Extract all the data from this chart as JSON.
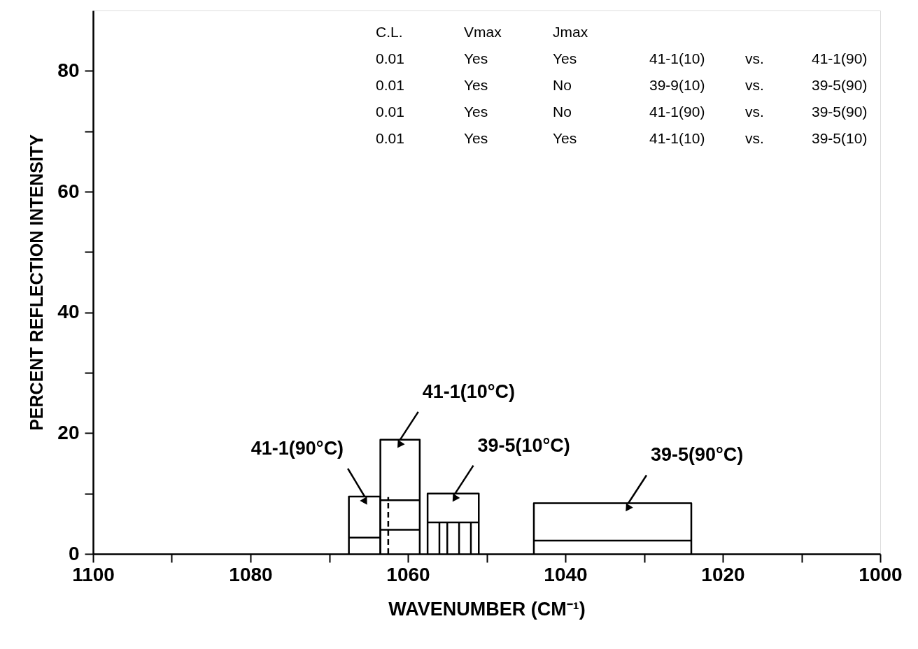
{
  "chart_data": {
    "type": "line",
    "xlabel": "WAVENUMBER (CM⁻¹)",
    "ylabel": "PERCENT REFLECTION INTENSITY",
    "xlim": [
      1100,
      1000
    ],
    "xticks": [
      1100,
      {
        "value": 1090,
        "label": null
      },
      1080,
      {
        "value": 1070,
        "label": null
      },
      1060,
      {
        "value": 1050,
        "label": null
      },
      1040,
      {
        "value": 1030,
        "label": null
      },
      1020,
      {
        "value": 1010,
        "label": null
      },
      1000
    ],
    "ylim": [
      0,
      90
    ],
    "yticks": [
      0,
      {
        "value": 10,
        "label": null
      },
      20,
      {
        "value": 30,
        "label": null
      },
      40,
      {
        "value": 50,
        "label": null
      },
      60,
      {
        "value": 70,
        "label": null
      },
      80
    ],
    "grid": false,
    "marker": "none",
    "series": [
      {
        "color": "#000000",
        "x": [
          1067.5,
          1067.5,
          1063.5,
          1063.5
        ],
        "values": [
          0,
          9.5,
          9.5,
          0
        ]
      },
      {
        "color": "#000000",
        "x": [
          1067.5,
          1063.5
        ],
        "values": [
          2.7,
          2.7
        ]
      },
      {
        "color": "#000000",
        "x": [
          1063.5,
          1063.5,
          1058.5,
          1058.5
        ],
        "values": [
          0,
          18.9,
          18.9,
          0
        ]
      },
      {
        "color": "#000000",
        "x": [
          1063.5,
          1058.5
        ],
        "values": [
          8.9,
          8.9
        ]
      },
      {
        "color": "#000000",
        "x": [
          1063.5,
          1058.5
        ],
        "values": [
          4.0,
          4.0
        ]
      },
      {
        "color": "#000000",
        "line_style": "dashed",
        "x": [
          1062.5,
          1062.5
        ],
        "values": [
          0,
          9.4
        ]
      },
      {
        "color": "#000000",
        "x": [
          1057.5,
          1057.5,
          1051,
          1051
        ],
        "values": [
          0,
          10,
          10,
          0
        ]
      },
      {
        "color": "#000000",
        "x": [
          1057.5,
          1051
        ],
        "values": [
          5.2,
          5.2
        ]
      },
      {
        "color": "#000000",
        "x": [
          1056,
          1056
        ],
        "values": [
          0,
          5.2
        ]
      },
      {
        "color": "#000000",
        "x": [
          1055,
          1055
        ],
        "values": [
          0,
          5.2
        ]
      },
      {
        "color": "#000000",
        "x": [
          1053.5,
          1053.5
        ],
        "values": [
          0,
          5.2
        ]
      },
      {
        "color": "#000000",
        "x": [
          1052,
          1052
        ],
        "values": [
          0,
          5.2
        ]
      },
      {
        "color": "#000000",
        "x": [
          1044,
          1044,
          1024,
          1024
        ],
        "values": [
          0,
          8.4,
          8.4,
          0
        ]
      },
      {
        "color": "#000000",
        "x": [
          1044,
          1024
        ],
        "values": [
          2.2,
          2.2
        ]
      }
    ],
    "annotations": [
      "C.L.",
      "Vmax",
      "Jmax",
      "0.01",
      "Yes",
      "Yes",
      "41-1(10)",
      "vs.",
      "41-1(90)",
      "0.01",
      "Yes",
      "No",
      "39-9(10)",
      "vs.",
      "39-5(90)",
      "0.01",
      "Yes",
      "No",
      "41-1(90)",
      "vs.",
      "39-5(90)",
      "0.01",
      "Yes",
      "Yes",
      "41-1(10)",
      "vs.",
      "39-5(10)",
      {
        "text": "41-1(90°C)",
        "x": 1065.5,
        "y": 9.5
      },
      {
        "text": "41-1(10°C)",
        "x": 1061,
        "y": 18.9
      },
      {
        "text": "39-5(10°C)",
        "x": 1054,
        "y": 10
      },
      {
        "text": "39-5(90°C)",
        "x": 1032,
        "y": 8.4
      }
    ]
  }
}
